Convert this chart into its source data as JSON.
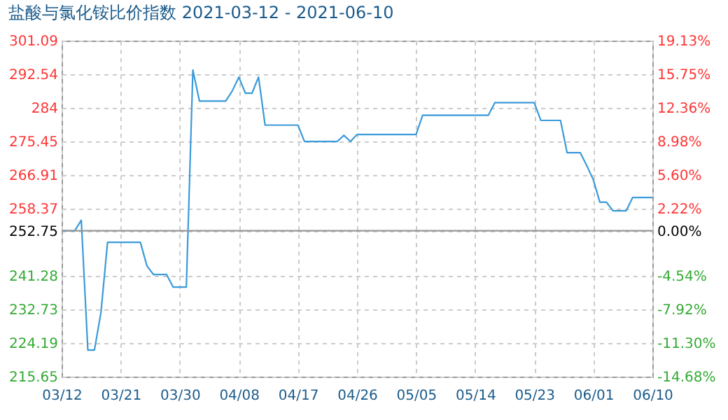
{
  "chart_data": {
    "type": "line",
    "title": "盐酸与氯化铵比价指数 2021-03-12 - 2021-06-10",
    "x": [
      "2021-03-12",
      "2021-03-14",
      "2021-03-15",
      "2021-03-16",
      "2021-03-17",
      "2021-03-18",
      "2021-03-19",
      "2021-03-24",
      "2021-03-25",
      "2021-03-26",
      "2021-03-28",
      "2021-03-29",
      "2021-03-31",
      "2021-04-01",
      "2021-04-02",
      "2021-04-06",
      "2021-04-07",
      "2021-04-08",
      "2021-04-09",
      "2021-04-10",
      "2021-04-11",
      "2021-04-12",
      "2021-04-17",
      "2021-04-18",
      "2021-04-23",
      "2021-04-24",
      "2021-04-25",
      "2021-04-26",
      "2021-05-05",
      "2021-05-06",
      "2021-05-16",
      "2021-05-17",
      "2021-05-23",
      "2021-05-24",
      "2021-05-27",
      "2021-05-28",
      "2021-05-30",
      "2021-05-31",
      "2021-06-01",
      "2021-06-02",
      "2021-06-03",
      "2021-06-04",
      "2021-06-06",
      "2021-06-07",
      "2021-06-10"
    ],
    "series": [
      {
        "color": "#3a9ad9",
        "values": [
          252.75,
          252.75,
          255.4,
          222.4,
          222.4,
          232,
          249.8,
          249.8,
          243.8,
          241.6,
          241.6,
          238.4,
          238.4,
          293.6,
          285.7,
          285.7,
          288.3,
          291.8,
          287.7,
          287.7,
          291.8,
          279.6,
          279.6,
          275.45,
          275.45,
          277,
          275.45,
          277.2,
          277.2,
          282.1,
          282.1,
          285.3,
          285.3,
          280.8,
          280.8,
          272.6,
          272.6,
          269.3,
          265.7,
          260,
          260,
          257.8,
          257.8,
          261.2,
          261.2
        ]
      }
    ],
    "xlim": [
      "2021-03-12",
      "2021-06-10"
    ],
    "xticks": [
      {
        "value": "2021-03-12",
        "label": "03/12"
      },
      {
        "value": "2021-03-21",
        "label": "03/21"
      },
      {
        "value": "2021-03-30",
        "label": "03/30"
      },
      {
        "value": "2021-04-08",
        "label": "04/08"
      },
      {
        "value": "2021-04-17",
        "label": "04/17"
      },
      {
        "value": "2021-04-26",
        "label": "04/26"
      },
      {
        "value": "2021-05-05",
        "label": "05/05"
      },
      {
        "value": "2021-05-14",
        "label": "05/14"
      },
      {
        "value": "2021-05-23",
        "label": "05/23"
      },
      {
        "value": "2021-06-01",
        "label": "06/01"
      },
      {
        "value": "2021-06-10",
        "label": "06/10"
      }
    ],
    "ylim": [
      215.65,
      301.09
    ],
    "yticks": [
      215.65,
      224.19,
      232.73,
      241.28,
      252.75,
      258.37,
      266.91,
      275.45,
      284,
      292.54,
      301.09
    ],
    "y2lim": [
      -14.68,
      19.13
    ],
    "y2ticks": [
      {
        "value": -14.68,
        "label": "-14.68%"
      },
      {
        "value": -11.3,
        "label": "-11.30%"
      },
      {
        "value": -7.92,
        "label": "-7.92%"
      },
      {
        "value": -4.54,
        "label": "-4.54%"
      },
      {
        "value": 0,
        "label": "0.00%"
      },
      {
        "value": 2.22,
        "label": "2.22%"
      },
      {
        "value": 5.6,
        "label": "5.60%"
      },
      {
        "value": 8.98,
        "label": "8.98%"
      },
      {
        "value": 12.36,
        "label": "12.36%"
      },
      {
        "value": 15.75,
        "label": "15.75%"
      },
      {
        "value": 19.13,
        "label": "19.13%"
      }
    ],
    "ref_lines": [
      {
        "axis": "y2",
        "value": 0,
        "color": "#999999"
      }
    ],
    "grid": true,
    "marker": "none",
    "line_style": "solid"
  }
}
